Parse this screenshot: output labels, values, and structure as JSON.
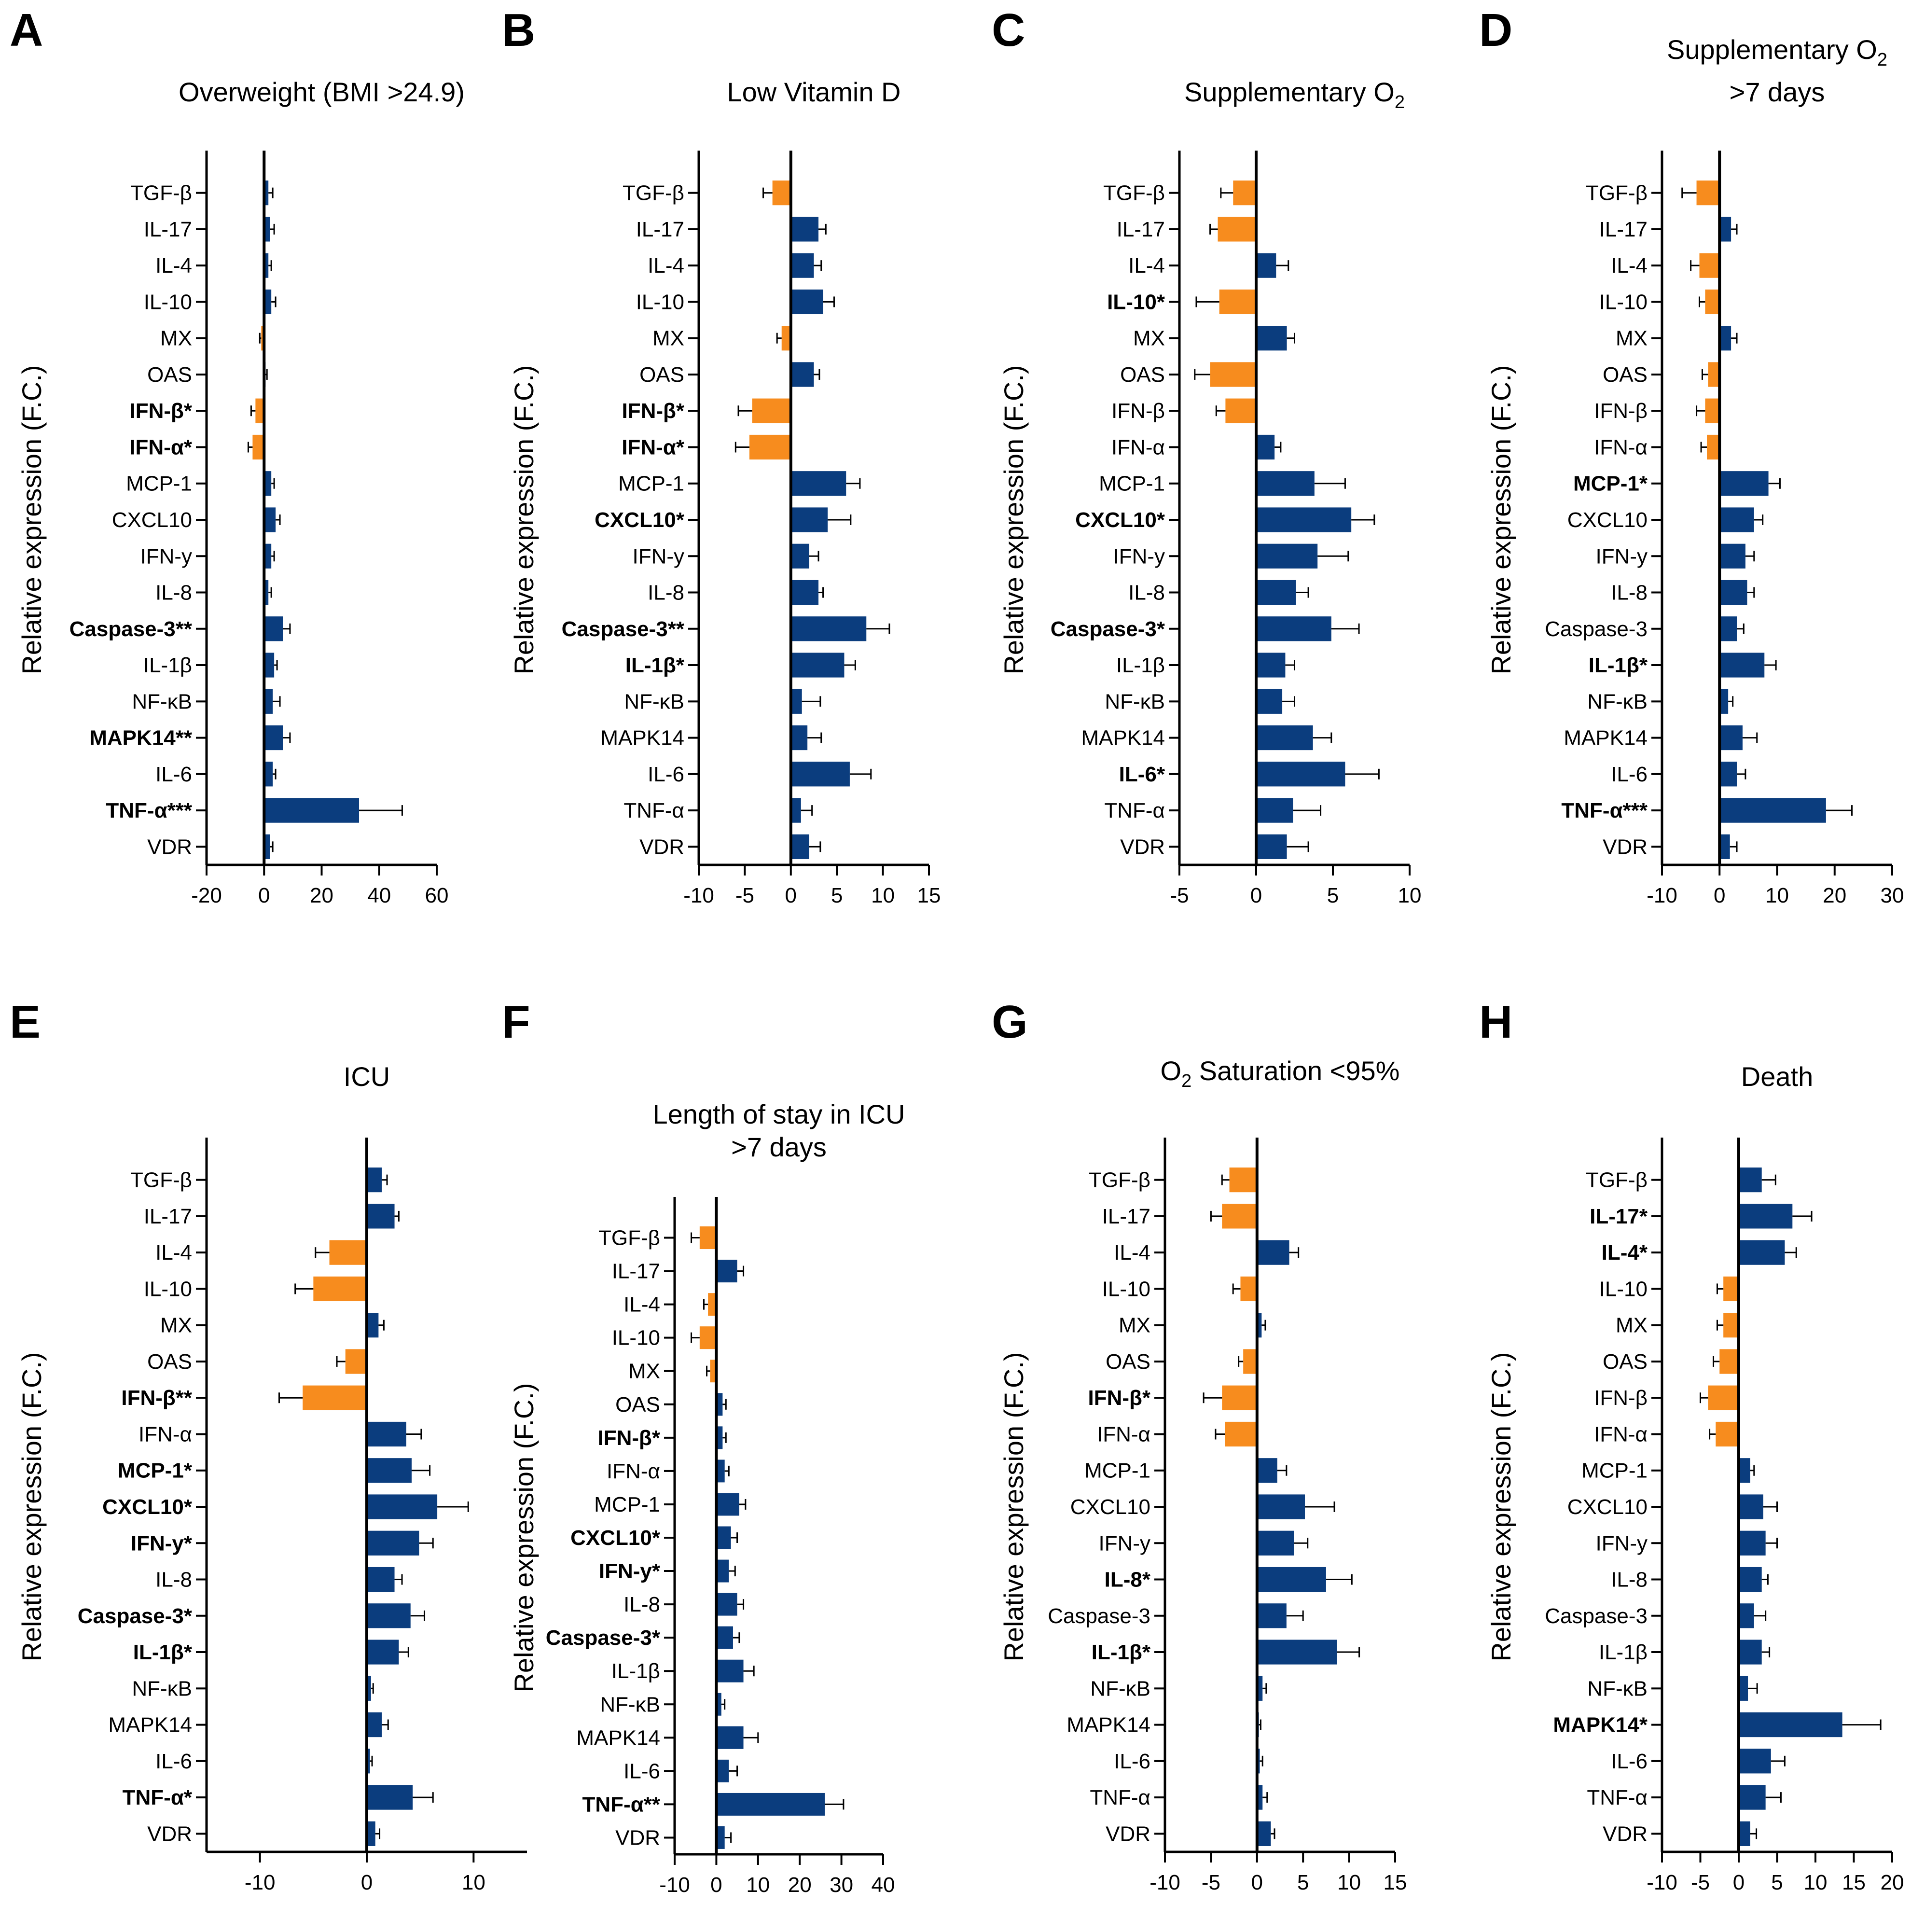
{
  "figure": {
    "layout": "2 rows x 4 panels",
    "orientation": "horizontal bars"
  },
  "colors": {
    "up": "#0B3D7E",
    "down": "#F78C1E",
    "axis": "#000000",
    "error": "#000000"
  },
  "chart_data": [
    {
      "panel": "A",
      "type": "bar",
      "orientation": "horizontal",
      "title_lines": [
        [
          "Overweight (BMI >24.9)"
        ]
      ],
      "ylabel": "Relative expression (F.C.)",
      "xlim": [
        -20,
        60
      ],
      "xticks": [
        "-20",
        "0",
        "20",
        "40",
        "60"
      ],
      "categories": [
        "TGF-β",
        "IL-17",
        "IL-4",
        "IL-10",
        "MX",
        "OAS",
        "IFN-β*",
        "IFN-α*",
        "MCP-1",
        "CXCL10",
        "IFN-y",
        "IL-8",
        "Caspase-3**",
        "IL-1β",
        "NF-κB",
        "MAPK14**",
        "IL-6",
        "TNF-α***",
        "VDR"
      ],
      "significant": [
        false,
        false,
        false,
        false,
        false,
        false,
        true,
        true,
        false,
        false,
        false,
        false,
        true,
        false,
        false,
        true,
        false,
        true,
        false
      ],
      "values": [
        1.5,
        2,
        1.5,
        2.5,
        -1,
        0.5,
        -3,
        -4,
        2.5,
        4,
        2.5,
        1.5,
        6.5,
        3.5,
        3,
        6.5,
        3,
        33,
        2
      ],
      "errors": [
        1.5,
        1.5,
        1,
        1.5,
        0.5,
        0.5,
        1.5,
        1.5,
        1,
        1.5,
        1,
        1,
        2.5,
        1,
        2.5,
        2.5,
        1,
        15,
        1
      ]
    },
    {
      "panel": "B",
      "type": "bar",
      "orientation": "horizontal",
      "title_lines": [
        [
          "Low Vitamin D"
        ]
      ],
      "ylabel": "Relative expression (F.C.)",
      "xlim": [
        -10,
        15
      ],
      "xticks": [
        "-10",
        "-5",
        "0",
        "5",
        "10",
        "15"
      ],
      "categories": [
        "TGF-β",
        "IL-17",
        "IL-4",
        "IL-10",
        "MX",
        "OAS",
        "IFN-β*",
        "IFN-α*",
        "MCP-1",
        "CXCL10*",
        "IFN-y",
        "IL-8",
        "Caspase-3**",
        "IL-1β*",
        "NF-κB",
        "MAPK14",
        "IL-6",
        "TNF-α",
        "VDR"
      ],
      "significant": [
        false,
        false,
        false,
        false,
        false,
        false,
        true,
        true,
        false,
        true,
        false,
        false,
        true,
        true,
        false,
        false,
        false,
        false,
        false
      ],
      "values": [
        -2,
        3,
        2.5,
        3.5,
        -1,
        2.5,
        -4.2,
        -4.5,
        6,
        4,
        2,
        3,
        8.2,
        5.8,
        1.2,
        1.8,
        6.4,
        1.1,
        2
      ],
      "errors": [
        1,
        0.8,
        0.8,
        1.2,
        0.5,
        0.6,
        1.5,
        1.5,
        1.5,
        2.5,
        1,
        0.5,
        2.5,
        1.2,
        2,
        1.5,
        2.3,
        1.2,
        1.2
      ]
    },
    {
      "panel": "C",
      "type": "bar",
      "orientation": "horizontal",
      "title_lines": [
        [
          "Supplementary O",
          "2"
        ]
      ],
      "ylabel": "Relative expression (F.C.)",
      "xlim": [
        -5,
        10
      ],
      "xticks": [
        "-5",
        "0",
        "5",
        "10"
      ],
      "categories": [
        "TGF-β",
        "IL-17",
        "IL-4",
        "IL-10*",
        "MX",
        "OAS",
        "IFN-β",
        "IFN-α",
        "MCP-1",
        "CXCL10*",
        "IFN-y",
        "IL-8",
        "Caspase-3*",
        "IL-1β",
        "NF-κB",
        "MAPK14",
        "IL-6*",
        "TNF-α",
        "VDR"
      ],
      "significant": [
        false,
        false,
        false,
        true,
        false,
        false,
        false,
        false,
        false,
        true,
        false,
        false,
        true,
        false,
        false,
        false,
        true,
        false,
        false
      ],
      "values": [
        -1.5,
        -2.5,
        1.3,
        -2.4,
        2,
        -3,
        -2,
        1.2,
        3.8,
        6.2,
        4,
        2.6,
        4.9,
        1.9,
        1.7,
        3.7,
        5.8,
        2.4,
        2
      ],
      "errors": [
        0.8,
        0.5,
        0.8,
        1.5,
        0.5,
        1,
        0.6,
        0.4,
        2,
        1.5,
        2,
        0.8,
        1.8,
        0.6,
        0.8,
        1.2,
        2.2,
        1.8,
        1.4
      ]
    },
    {
      "panel": "D",
      "type": "bar",
      "orientation": "horizontal",
      "title_lines": [
        [
          "Supplementary O",
          "2"
        ],
        [
          ">7 days"
        ]
      ],
      "ylabel": "Relative expression (F.C.)",
      "xlim": [
        -10,
        30
      ],
      "xticks": [
        "-10",
        "0",
        "10",
        "20",
        "30"
      ],
      "categories": [
        "TGF-β",
        "IL-17",
        "IL-4",
        "IL-10",
        "MX",
        "OAS",
        "IFN-β",
        "IFN-α",
        "MCP-1*",
        "CXCL10",
        "IFN-y",
        "IL-8",
        "Caspase-3",
        "IL-1β*",
        "NF-κB",
        "MAPK14",
        "IL-6",
        "TNF-α***",
        "VDR"
      ],
      "significant": [
        false,
        false,
        false,
        false,
        false,
        false,
        false,
        false,
        true,
        false,
        false,
        false,
        false,
        true,
        false,
        false,
        false,
        true,
        false
      ],
      "values": [
        -4,
        2,
        -3.5,
        -2.5,
        2,
        -2,
        -2.5,
        -2.2,
        8.5,
        6,
        4.5,
        4.8,
        3,
        7.8,
        1.5,
        4,
        3,
        18.5,
        1.8
      ],
      "errors": [
        2.5,
        1,
        1.5,
        1,
        1,
        1,
        1.5,
        1,
        2,
        1.5,
        1.5,
        1.2,
        1.2,
        2,
        0.8,
        2.5,
        1.5,
        4.5,
        1.2
      ]
    },
    {
      "panel": "E",
      "type": "bar",
      "orientation": "horizontal",
      "title_lines": [
        [
          "ICU"
        ]
      ],
      "ylabel": "Relative expression (F.C.)",
      "xlim": [
        -15,
        15
      ],
      "xticks": [
        "-10",
        "0",
        "10"
      ],
      "categories": [
        "TGF-β",
        "IL-17",
        "IL-4",
        "IL-10",
        "MX",
        "OAS",
        "IFN-β**",
        "IFN-α",
        "MCP-1*",
        "CXCL10*",
        "IFN-y*",
        "IL-8",
        "Caspase-3*",
        "IL-1β*",
        "NF-κB",
        "MAPK14",
        "IL-6",
        "TNF-α*",
        "VDR"
      ],
      "significant": [
        false,
        false,
        false,
        false,
        false,
        false,
        true,
        false,
        true,
        true,
        true,
        false,
        true,
        true,
        false,
        false,
        false,
        true,
        false
      ],
      "values": [
        1.4,
        2.6,
        -3.5,
        -5,
        1.1,
        -2,
        -6,
        3.7,
        4.2,
        6.6,
        4.9,
        2.6,
        4.1,
        3,
        0.4,
        1.4,
        0.3,
        4.3,
        0.8
      ],
      "errors": [
        0.5,
        0.4,
        1.3,
        1.7,
        0.5,
        0.8,
        2.2,
        1.4,
        1.7,
        2.9,
        1.3,
        0.7,
        1.3,
        0.9,
        0.2,
        0.6,
        0.2,
        1.9,
        0.4
      ]
    },
    {
      "panel": "F",
      "type": "bar",
      "orientation": "horizontal",
      "title_lines": [
        [
          "Length of stay in ICU"
        ],
        [
          ">7 days"
        ]
      ],
      "ylabel": "Relative expression (F.C.)",
      "xlim": [
        -10,
        40
      ],
      "xticks": [
        "-10",
        "0",
        "10",
        "20",
        "30",
        "40"
      ],
      "categories": [
        "TGF-β",
        "IL-17",
        "IL-4",
        "IL-10",
        "MX",
        "OAS",
        "IFN-β*",
        "IFN-α",
        "MCP-1",
        "CXCL10*",
        "IFN-y*",
        "IL-8",
        "Caspase-3*",
        "IL-1β",
        "NF-κB",
        "MAPK14",
        "IL-6",
        "TNF-α**",
        "VDR"
      ],
      "significant": [
        false,
        false,
        false,
        false,
        false,
        false,
        true,
        false,
        false,
        true,
        true,
        false,
        true,
        false,
        false,
        false,
        false,
        true,
        false
      ],
      "values": [
        -4,
        5,
        -2,
        -4,
        -1.5,
        1.5,
        1.5,
        2,
        5.5,
        3.5,
        3,
        5,
        4,
        6.5,
        1.2,
        6.5,
        3,
        26,
        2
      ],
      "errors": [
        2,
        1.5,
        1,
        2,
        0.8,
        0.8,
        0.8,
        1,
        1.5,
        1.5,
        1.5,
        1.5,
        1.5,
        2.5,
        0.8,
        3.5,
        2,
        4.5,
        1.5
      ]
    },
    {
      "panel": "G",
      "type": "bar",
      "orientation": "horizontal",
      "title_lines": [
        [
          "O",
          "2",
          " Saturation <95%"
        ]
      ],
      "ylabel": "Relative expression (F.C.)",
      "xlim": [
        -10,
        15
      ],
      "xticks": [
        "-10",
        "-5",
        "0",
        "5",
        "10",
        "15"
      ],
      "categories": [
        "TGF-β",
        "IL-17",
        "IL-4",
        "IL-10",
        "MX",
        "OAS",
        "IFN-β*",
        "IFN-α",
        "MCP-1",
        "CXCL10",
        "IFN-y",
        "IL-8*",
        "Caspase-3",
        "IL-1β*",
        "NF-κB",
        "MAPK14",
        "IL-6",
        "TNF-α",
        "VDR"
      ],
      "significant": [
        false,
        false,
        false,
        false,
        false,
        false,
        true,
        false,
        false,
        false,
        false,
        true,
        false,
        true,
        false,
        false,
        false,
        false,
        false
      ],
      "values": [
        -3,
        -3.8,
        3.5,
        -1.8,
        0.5,
        -1.5,
        -3.8,
        -3.5,
        2.2,
        5.2,
        4,
        7.5,
        3.2,
        8.7,
        0.6,
        0.2,
        0.3,
        0.6,
        1.5
      ],
      "errors": [
        0.8,
        1.2,
        1,
        0.8,
        0.4,
        0.5,
        2,
        1,
        1,
        3.2,
        1.5,
        2.8,
        1.8,
        2.4,
        0.4,
        0.2,
        0.3,
        0.5,
        0.4
      ]
    },
    {
      "panel": "H",
      "type": "bar",
      "orientation": "horizontal",
      "title_lines": [
        [
          "Death"
        ]
      ],
      "ylabel": "Relative expression (F.C.)",
      "xlim": [
        -10,
        20
      ],
      "xticks": [
        "-10",
        "-5",
        "0",
        "5",
        "10",
        "15",
        "20"
      ],
      "categories": [
        "TGF-β",
        "IL-17*",
        "IL-4*",
        "IL-10",
        "MX",
        "OAS",
        "IFN-β",
        "IFN-α",
        "MCP-1",
        "CXCL10",
        "IFN-y",
        "IL-8",
        "Caspase-3",
        "IL-1β",
        "NF-κB",
        "MAPK14*",
        "IL-6",
        "TNF-α",
        "VDR"
      ],
      "significant": [
        false,
        true,
        true,
        false,
        false,
        false,
        false,
        false,
        false,
        false,
        false,
        false,
        false,
        false,
        false,
        true,
        false,
        false,
        false
      ],
      "values": [
        3,
        7,
        6,
        -2,
        -2,
        -2.5,
        -4,
        -3,
        1.5,
        3.2,
        3.5,
        3,
        2,
        3,
        1.2,
        13.5,
        4.2,
        3.5,
        1.5
      ],
      "errors": [
        1.8,
        2.5,
        1.5,
        0.8,
        0.8,
        0.8,
        1,
        0.8,
        0.5,
        1.8,
        1.5,
        0.8,
        1.5,
        1,
        1.2,
        5,
        1.8,
        2,
        0.8
      ]
    }
  ]
}
